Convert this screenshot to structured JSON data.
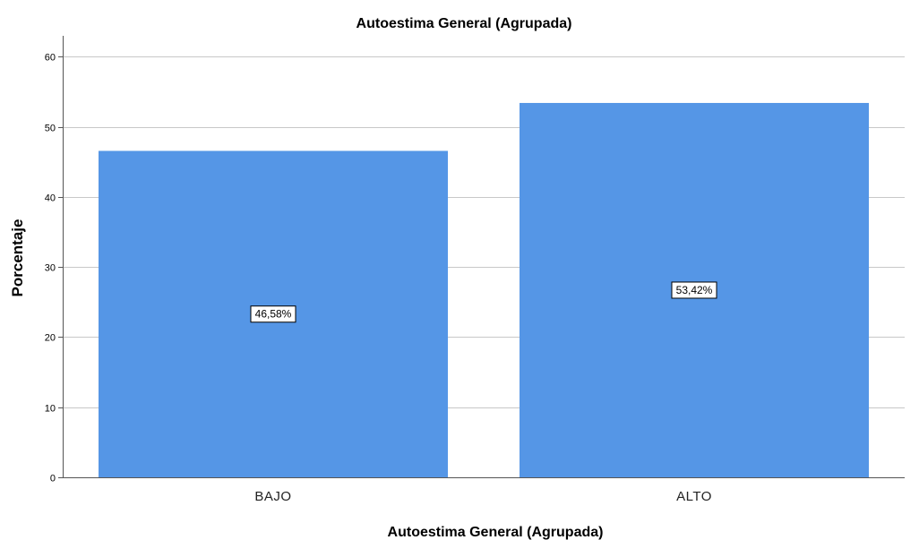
{
  "chart_data": {
    "type": "bar",
    "title": "Autoestima General (Agrupada)",
    "xlabel": "Autoestima General (Agrupada)",
    "ylabel": "Porcentaje",
    "categories": [
      "BAJO",
      "ALTO"
    ],
    "values": [
      46.58,
      53.42
    ],
    "data_labels": [
      "46,58%",
      "53,42%"
    ],
    "ylim": [
      0,
      63
    ],
    "yticks": [
      0,
      10,
      20,
      30,
      40,
      50,
      60
    ],
    "grid": true,
    "bar_color": "#5596e6",
    "grid_color": "#c8c8c8",
    "axis_color": "#555555"
  }
}
